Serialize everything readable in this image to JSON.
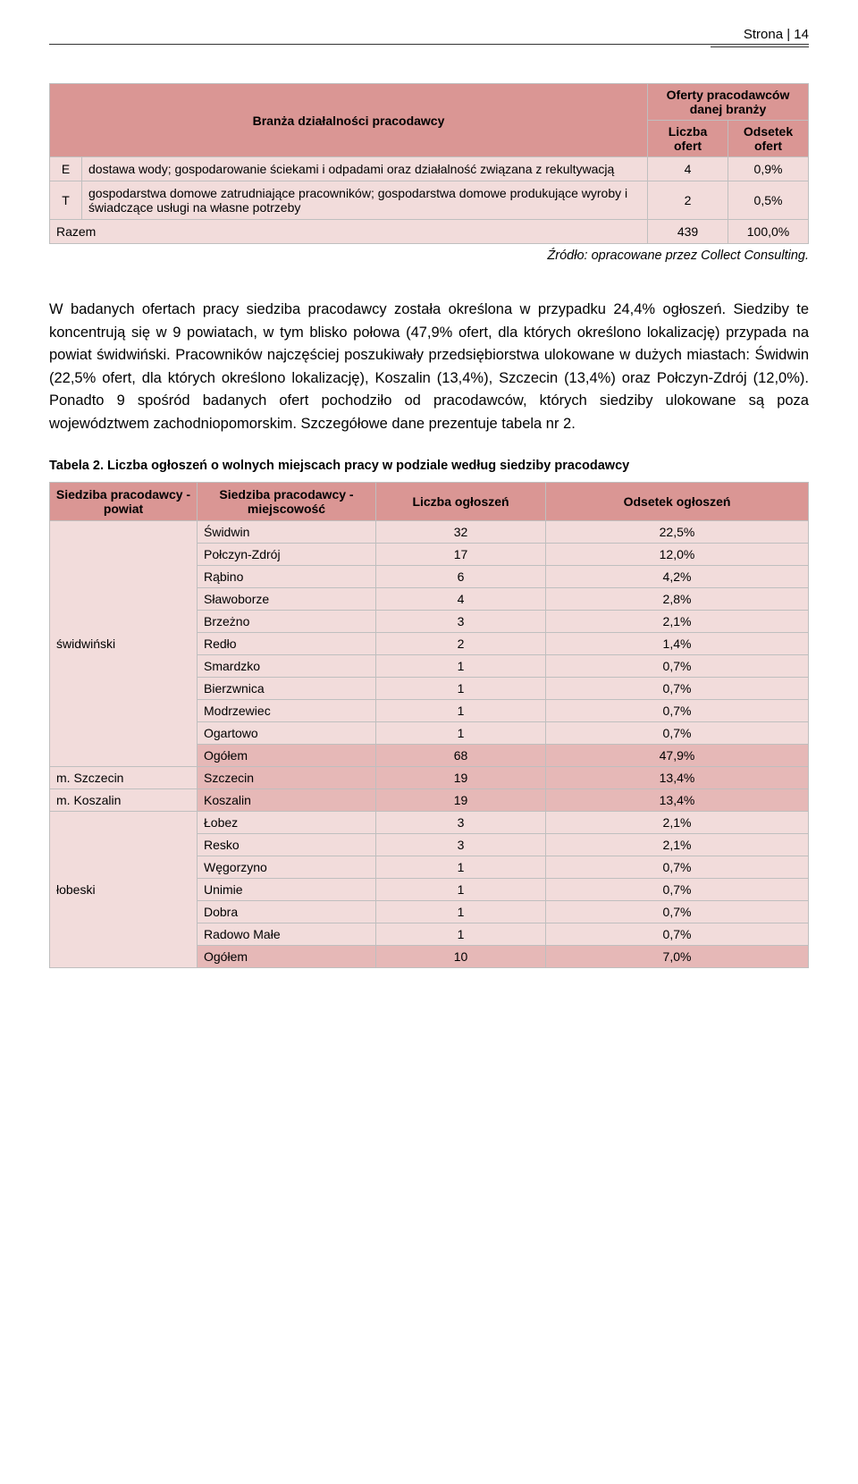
{
  "header": {
    "page_label": "Strona | 14"
  },
  "table1": {
    "head": {
      "col_branch": "Branża działalności pracodawcy",
      "col_group": "Oferty pracodawców danej branży",
      "col_count": "Liczba ofert",
      "col_pct": "Odsetek ofert"
    },
    "rows": [
      {
        "code": "E",
        "desc": "dostawa wody; gospodarowanie ściekami i odpadami oraz działalność związana z rekultywacją",
        "count": "4",
        "pct": "0,9%"
      },
      {
        "code": "T",
        "desc": "gospodarstwa domowe zatrudniające pracowników; gospodarstwa domowe produkujące wyroby i świadczące usługi na własne potrzeby",
        "count": "2",
        "pct": "0,5%"
      }
    ],
    "total": {
      "label": "Razem",
      "count": "439",
      "pct": "100,0%"
    }
  },
  "source_line": "Źródło: opracowane przez Collect Consulting.",
  "body_paragraph": "W badanych ofertach pracy siedziba pracodawcy została określona w przypadku 24,4% ogłoszeń. Siedziby te koncentrują się w 9 powiatach, w tym blisko połowa (47,9%  ofert, dla których określono lokalizację) przypada na powiat świdwiński. Pracowników najczęściej poszukiwały przedsiębiorstwa ulokowane w dużych miastach: Świdwin (22,5% ofert, dla których określono lokalizację), Koszalin (13,4%), Szczecin (13,4%) oraz Połczyn-Zdrój (12,0%). Ponadto 9 spośród badanych ofert pochodziło od pracodawców, których siedziby ulokowane są poza województwem zachodniopomorskim. Szczegółowe dane prezentuje tabela nr 2.",
  "table2_caption": "Tabela 2. Liczba ogłoszeń o wolnych miejscach pracy w podziale według siedziby pracodawcy",
  "table2": {
    "head": {
      "powiat": "Siedziba pracodawcy - powiat",
      "miejscowosc": "Siedziba pracodawcy - miejscowość",
      "count": "Liczba ogłoszeń",
      "pct": "Odsetek ogłoszeń"
    },
    "groups": [
      {
        "powiat": "świdwiński",
        "rows": [
          {
            "loc": "Świdwin",
            "cnt": "32",
            "pct": "22,5%"
          },
          {
            "loc": "Połczyn-Zdrój",
            "cnt": "17",
            "pct": "12,0%"
          },
          {
            "loc": "Rąbino",
            "cnt": "6",
            "pct": "4,2%"
          },
          {
            "loc": "Sławoborze",
            "cnt": "4",
            "pct": "2,8%"
          },
          {
            "loc": "Brzeżno",
            "cnt": "3",
            "pct": "2,1%"
          },
          {
            "loc": "Redło",
            "cnt": "2",
            "pct": "1,4%"
          },
          {
            "loc": "Smardzko",
            "cnt": "1",
            "pct": "0,7%"
          },
          {
            "loc": "Bierzwnica",
            "cnt": "1",
            "pct": "0,7%"
          },
          {
            "loc": "Modrzewiec",
            "cnt": "1",
            "pct": "0,7%"
          },
          {
            "loc": "Ogartowo",
            "cnt": "1",
            "pct": "0,7%"
          }
        ],
        "subtotal": {
          "loc": "Ogółem",
          "cnt": "68",
          "pct": "47,9%"
        }
      },
      {
        "powiat": "m. Szczecin",
        "rows": [
          {
            "loc": "Szczecin",
            "cnt": "19",
            "pct": "13,4%",
            "highlight": true
          }
        ]
      },
      {
        "powiat": "m. Koszalin",
        "rows": [
          {
            "loc": "Koszalin",
            "cnt": "19",
            "pct": "13,4%",
            "highlight": true
          }
        ]
      },
      {
        "powiat": "łobeski",
        "rows": [
          {
            "loc": "Łobez",
            "cnt": "3",
            "pct": "2,1%"
          },
          {
            "loc": "Resko",
            "cnt": "3",
            "pct": "2,1%"
          },
          {
            "loc": "Węgorzyno",
            "cnt": "1",
            "pct": "0,7%"
          },
          {
            "loc": "Unimie",
            "cnt": "1",
            "pct": "0,7%"
          },
          {
            "loc": "Dobra",
            "cnt": "1",
            "pct": "0,7%"
          },
          {
            "loc": "Radowo Małe",
            "cnt": "1",
            "pct": "0,7%"
          }
        ],
        "subtotal": {
          "loc": "Ogółem",
          "cnt": "10",
          "pct": "7,0%"
        }
      }
    ]
  },
  "colors": {
    "header_bg": "#da9694",
    "cell_bg": "#f2dcdb",
    "subtotal_bg": "#e6b8b7",
    "border": "#bfbfbf"
  }
}
